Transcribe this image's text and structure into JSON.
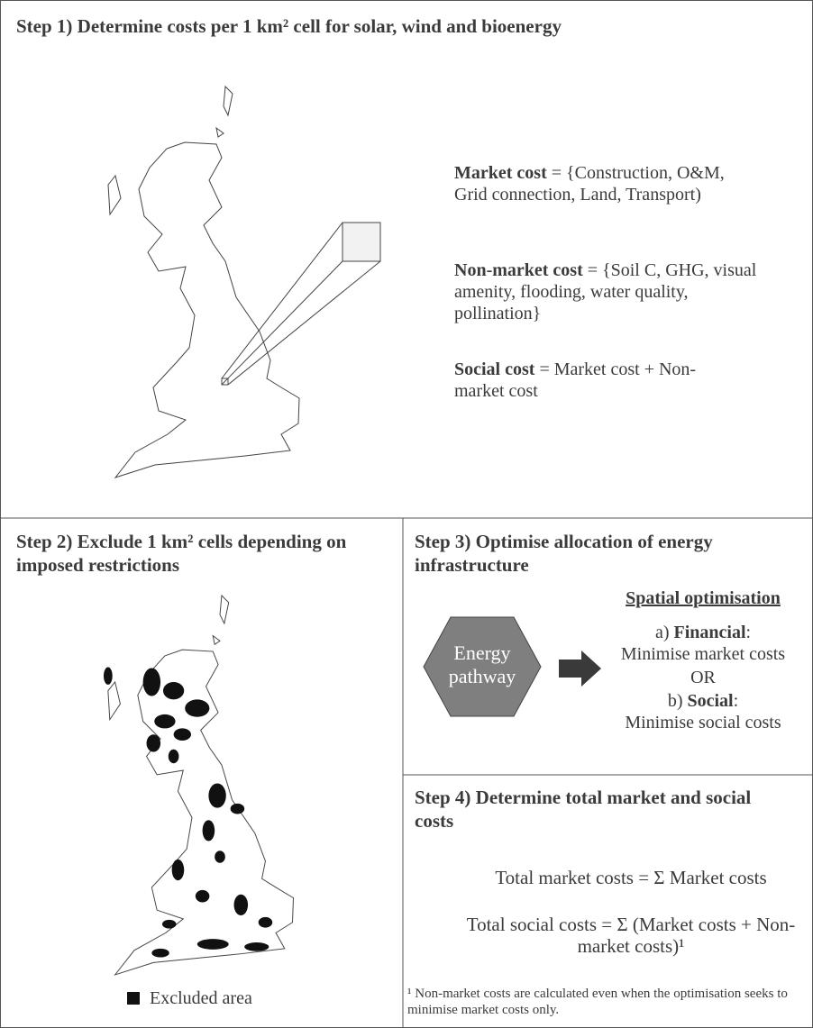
{
  "step1": {
    "title": "Step 1) Determine costs per 1 km² cell for solar, wind and bioenergy",
    "market_cost": {
      "label": "Market cost",
      "definition": " = {Construction, O&M, Grid connection, Land, Transport)"
    },
    "non_market_cost": {
      "label": "Non-market cost",
      "definition": "= {Soil C, GHG, visual amenity, flooding, water quality, pollination}"
    },
    "social_cost": {
      "label": "Social cost",
      "definition": "= Market cost + Non-market cost"
    }
  },
  "step2": {
    "title": "Step 2) Exclude 1 km² cells depending on imposed restrictions",
    "legend": "Excluded area"
  },
  "step3": {
    "title": "Step 3) Optimise allocation of energy infrastructure",
    "hexagon": "Energy pathway",
    "heading": "Spatial optimisation",
    "option_a": {
      "prefix": "a)",
      "label": "Financial",
      "suffix": ":",
      "description": "Minimise market costs"
    },
    "separator": "OR",
    "option_b": {
      "prefix": "b)",
      "label": "Social",
      "suffix": ":",
      "description": "Minimise social costs"
    }
  },
  "step4": {
    "title": "Step 4) Determine total market and social costs",
    "formula_market": "Total market costs = Σ Market costs",
    "formula_social": "Total social costs = Σ (Market costs + Non-market costs)¹",
    "footnote": "¹ Non-market costs are calculated even when the optimisation seeks to minimise market costs only."
  }
}
